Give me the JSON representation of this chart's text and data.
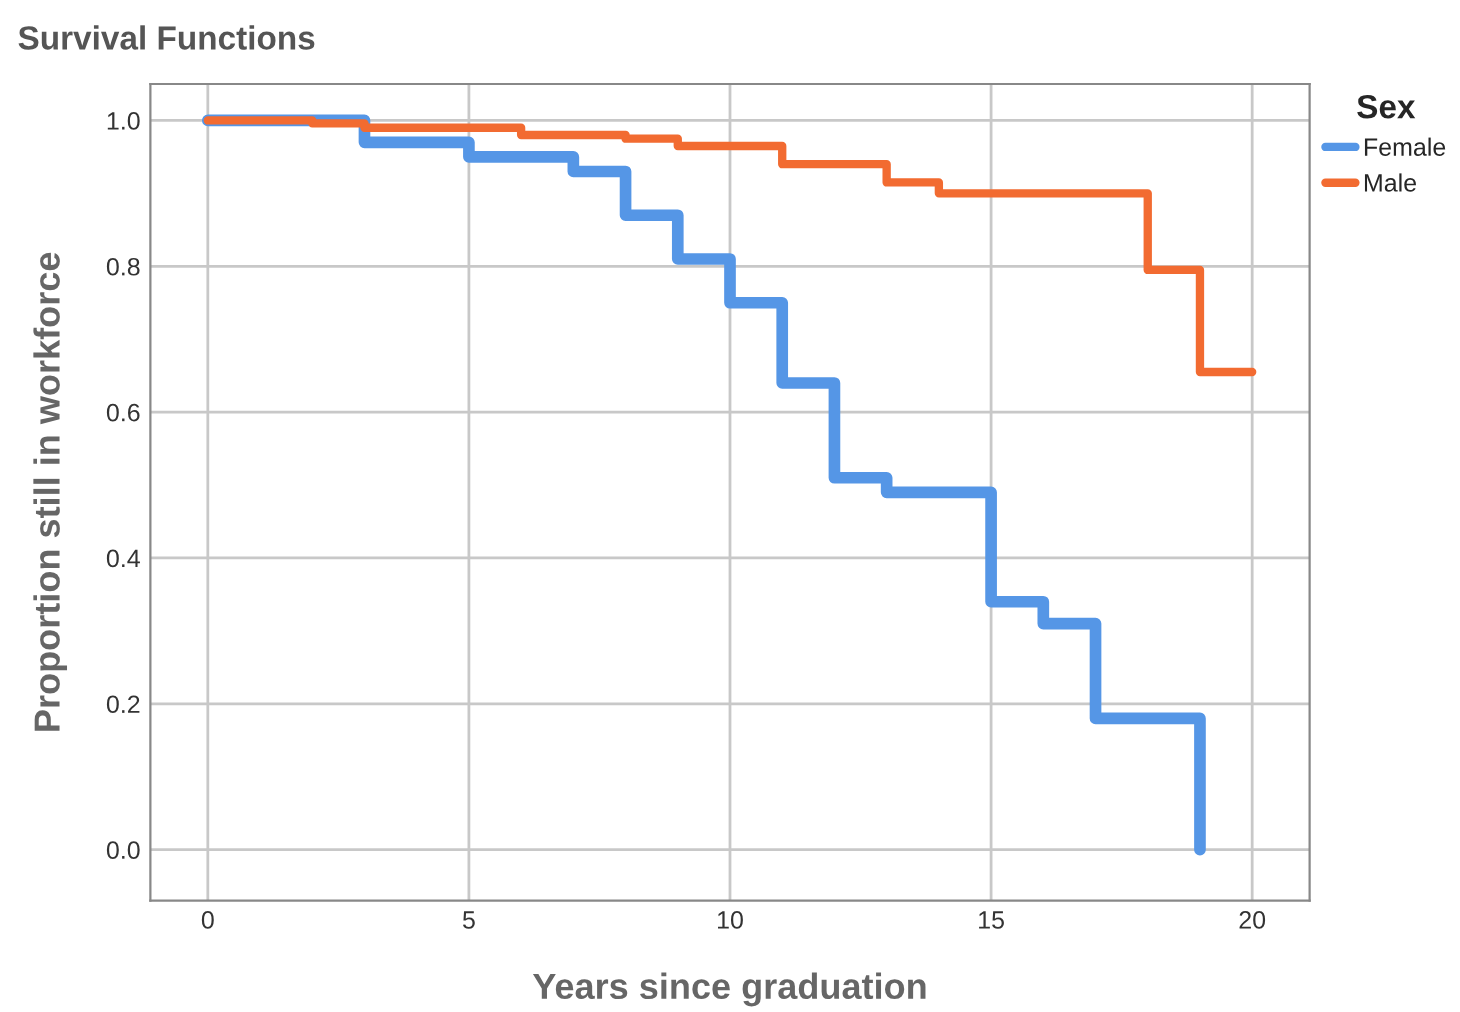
{
  "chart_data": {
    "type": "step",
    "title": "Survival Functions",
    "xlabel": "Years since graduation",
    "ylabel": "Proportion still in workforce",
    "legend_title": "Sex",
    "series": [
      {
        "name": "Female",
        "color": "#5596e6",
        "x": [
          0,
          3,
          5,
          7,
          8,
          9,
          10,
          11,
          12,
          13,
          15,
          16,
          17,
          19
        ],
        "values": [
          1.0,
          0.97,
          0.95,
          0.93,
          0.87,
          0.81,
          0.75,
          0.64,
          0.51,
          0.49,
          0.34,
          0.31,
          0.18,
          0.0
        ]
      },
      {
        "name": "Male",
        "color": "#f26b31",
        "x": [
          0,
          2,
          3,
          6,
          8,
          9,
          11,
          13,
          14,
          18,
          19,
          20
        ],
        "values": [
          1.0,
          0.996,
          0.99,
          0.98,
          0.975,
          0.965,
          0.94,
          0.915,
          0.9,
          0.795,
          0.655,
          0.655
        ]
      }
    ],
    "xlim": [
      -1.1,
      21.1
    ],
    "xticks": [
      0,
      5,
      10,
      15,
      20
    ],
    "ylim": [
      -0.07,
      1.05
    ],
    "yticks": [
      {
        "value": 0,
        "label": "0.0"
      },
      {
        "value": 0.2,
        "label": "0.2"
      },
      {
        "value": 0.4,
        "label": "0.4"
      },
      {
        "value": 0.6,
        "label": "0.6"
      },
      {
        "value": 0.8,
        "label": "0.8"
      },
      {
        "value": 1,
        "label": "1.0"
      }
    ],
    "grid": true,
    "legend": "right"
  }
}
